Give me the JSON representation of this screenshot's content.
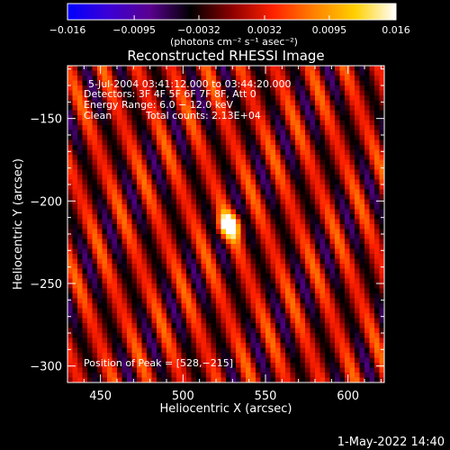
{
  "chart_data": {
    "type": "heatmap",
    "title": "Reconstructed RHESSI Image",
    "xlabel": "Heliocentric X (arcsec)",
    "ylabel": "Heliocentric Y (arcsec)",
    "xlim": [
      430,
      622
    ],
    "ylim": [
      -310,
      -118
    ],
    "xticks": [
      450,
      500,
      550,
      600
    ],
    "yticks": [
      -150,
      -200,
      -250,
      -300
    ],
    "x_tick_labels": [
      "450",
      "500",
      "550",
      "600"
    ],
    "y_tick_labels": [
      "−150",
      "−200",
      "−250",
      "−300"
    ],
    "colorbar": {
      "min": -0.016,
      "max": 0.016,
      "ticks": [
        -0.016,
        -0.0095,
        -0.0032,
        0.0032,
        0.0095,
        0.016
      ],
      "tick_labels": [
        "−0.016",
        "−0.0095",
        "−0.0032",
        "0.0032",
        "0.0095",
        "0.016"
      ],
      "unit_label": "(photons cm⁻² s⁻¹ asec⁻²)",
      "colors": [
        "#0000ff",
        "#3b00d6",
        "#5a0090",
        "#000000",
        "#8b0000",
        "#ff2000",
        "#ff8000",
        "#ffd000",
        "#ffffff"
      ]
    },
    "annotations": [
      "5‑Jul‑2004 03:41:12.000 to 03:44:20.000",
      "Detectors: 3F 4F 5F 6F 7F 8F, Att 0",
      "Energy Range: 6.0 − 12.0 keV",
      "Clean",
      "Total counts: 2.13E+04"
    ],
    "peak": {
      "label": "Position of Peak = [528,−215]",
      "x": 528,
      "y": -215,
      "value": 0.016
    },
    "background_pattern": {
      "description": "diagonal stripe sidelobes",
      "amplitude": 0.0075
    },
    "timestamp": "1‑May‑2022 14:40"
  }
}
